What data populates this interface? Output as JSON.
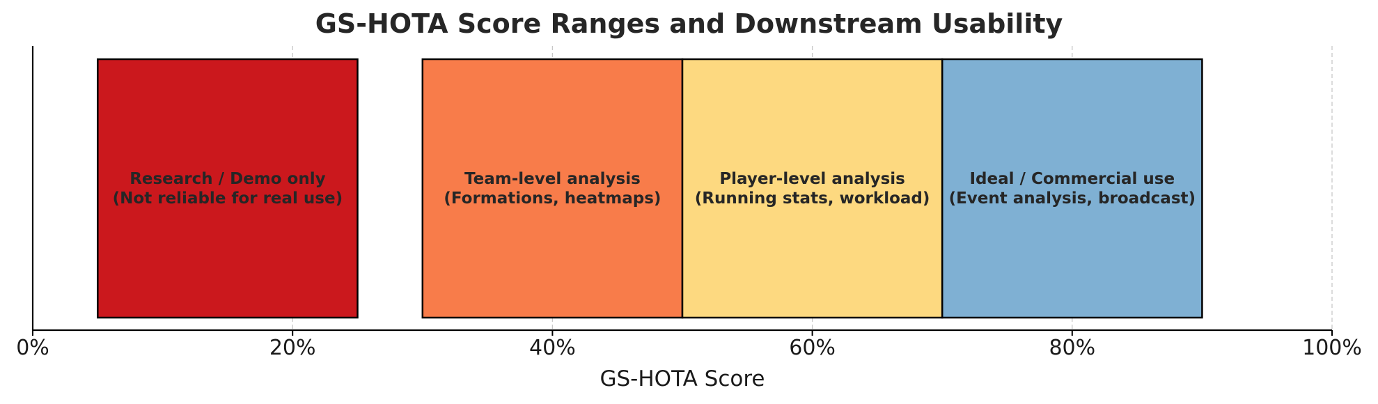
{
  "chart_data": {
    "type": "bar",
    "orientation": "horizontal-ranges",
    "title": "GS-HOTA Score Ranges and Downstream Usability",
    "xlabel": "GS-HOTA Score",
    "ylabel": "",
    "xlim": [
      0,
      100
    ],
    "x_ticks": [
      0,
      20,
      40,
      60,
      80,
      100
    ],
    "x_tick_labels": [
      "0%",
      "20%",
      "40%",
      "60%",
      "80%",
      "100%"
    ],
    "grid": "vertical-dashed",
    "ranges": [
      {
        "start": 5,
        "end": 25,
        "label_line1": "Research / Demo only",
        "label_line2": "(Not reliable for real use)",
        "color": "#cb181d"
      },
      {
        "start": 30,
        "end": 50,
        "label_line1": "Team-level analysis",
        "label_line2": "(Formations, heatmaps)",
        "color": "#f87c4a"
      },
      {
        "start": 50,
        "end": 70,
        "label_line1": "Player-level analysis",
        "label_line2": "(Running stats, workload)",
        "color": "#fdd980"
      },
      {
        "start": 70,
        "end": 90,
        "label_line1": "Ideal / Commercial use",
        "label_line2": "(Event analysis, broadcast)",
        "color": "#7fb0d3"
      }
    ]
  }
}
